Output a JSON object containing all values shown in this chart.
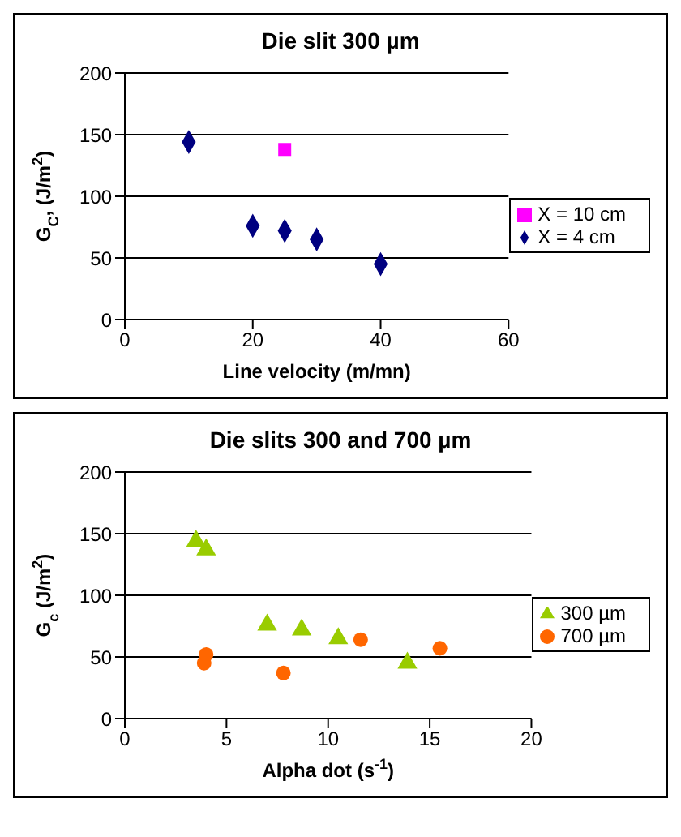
{
  "chart_data": [
    {
      "type": "scatter",
      "title": "Die slit 300 µm",
      "xlabel": "Line velocity (m/mn)",
      "ylabel": "G$_{C}$, (J/m$^{2}$)",
      "xlim": [
        0,
        60
      ],
      "xticks": [
        0,
        20,
        40,
        60
      ],
      "ylim": [
        0,
        200
      ],
      "yticks": [
        0,
        50,
        100,
        150,
        200
      ],
      "grid": "y",
      "legend": "right",
      "series": [
        {
          "name": "X = 4 cm",
          "color": "#000080",
          "marker": "diamond",
          "x": [
            10,
            20,
            25,
            30,
            40
          ],
          "values": [
            144,
            76,
            72,
            65,
            45
          ]
        },
        {
          "name": "X = 10 cm",
          "color": "#ff00ff",
          "marker": "square",
          "x": [
            25
          ],
          "values": [
            138
          ]
        }
      ]
    },
    {
      "type": "scatter",
      "title": "Die slits 300 and 700 µm",
      "xlabel": "Alpha dot (s$^{-1}$)",
      "ylabel": "G$_{c}$ (J/m$^{2}$)",
      "xlim": [
        0,
        20
      ],
      "xticks": [
        0,
        5,
        10,
        15,
        20
      ],
      "ylim": [
        0,
        200
      ],
      "yticks": [
        0,
        50,
        100,
        150,
        200
      ],
      "grid": "y",
      "legend": "right",
      "series": [
        {
          "name": "300 µm",
          "color": "#99cc00",
          "marker": "triangle",
          "x": [
            3.5,
            4,
            7,
            8.7,
            10.5,
            13.9
          ],
          "values": [
            144,
            137,
            76,
            72,
            65,
            45
          ]
        },
        {
          "name": "700 µm",
          "color": "#ff6600",
          "marker": "circle",
          "x": [
            3.9,
            4,
            7.8,
            11.6,
            15.5
          ],
          "values": [
            45,
            52,
            37,
            64,
            57
          ]
        }
      ]
    }
  ]
}
